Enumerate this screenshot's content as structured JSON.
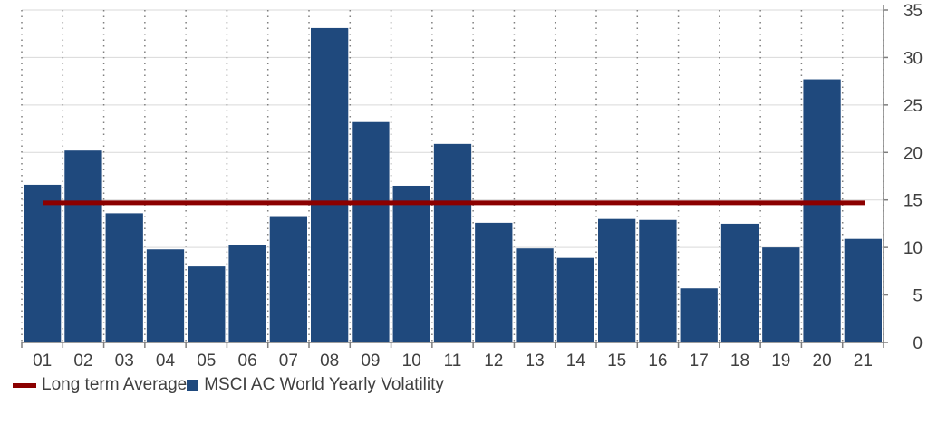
{
  "chart_data": {
    "type": "bar",
    "categories": [
      "01",
      "02",
      "03",
      "04",
      "05",
      "06",
      "07",
      "08",
      "09",
      "10",
      "11",
      "12",
      "13",
      "14",
      "15",
      "16",
      "17",
      "18",
      "19",
      "20",
      "21"
    ],
    "series": [
      {
        "name": "MSCI AC World Yearly Volatility",
        "values": [
          16.6,
          20.2,
          13.6,
          9.8,
          8.0,
          10.3,
          13.3,
          33.1,
          23.2,
          16.5,
          20.9,
          12.6,
          9.9,
          8.9,
          13.0,
          12.9,
          5.7,
          12.5,
          10.0,
          27.7,
          10.9
        ],
        "color": "#1f497d"
      },
      {
        "name": "Long term Average",
        "type": "line",
        "value": 14.7,
        "color": "#8b0000"
      }
    ],
    "ylim": [
      0,
      35
    ],
    "yticks": [
      0,
      5,
      10,
      15,
      20,
      25,
      30,
      35
    ],
    "y_axis_position": "right",
    "grid": "horizontal solid, vertical dotted",
    "legend_position": "bottom-left",
    "title": "",
    "xlabel": "",
    "ylabel": ""
  }
}
